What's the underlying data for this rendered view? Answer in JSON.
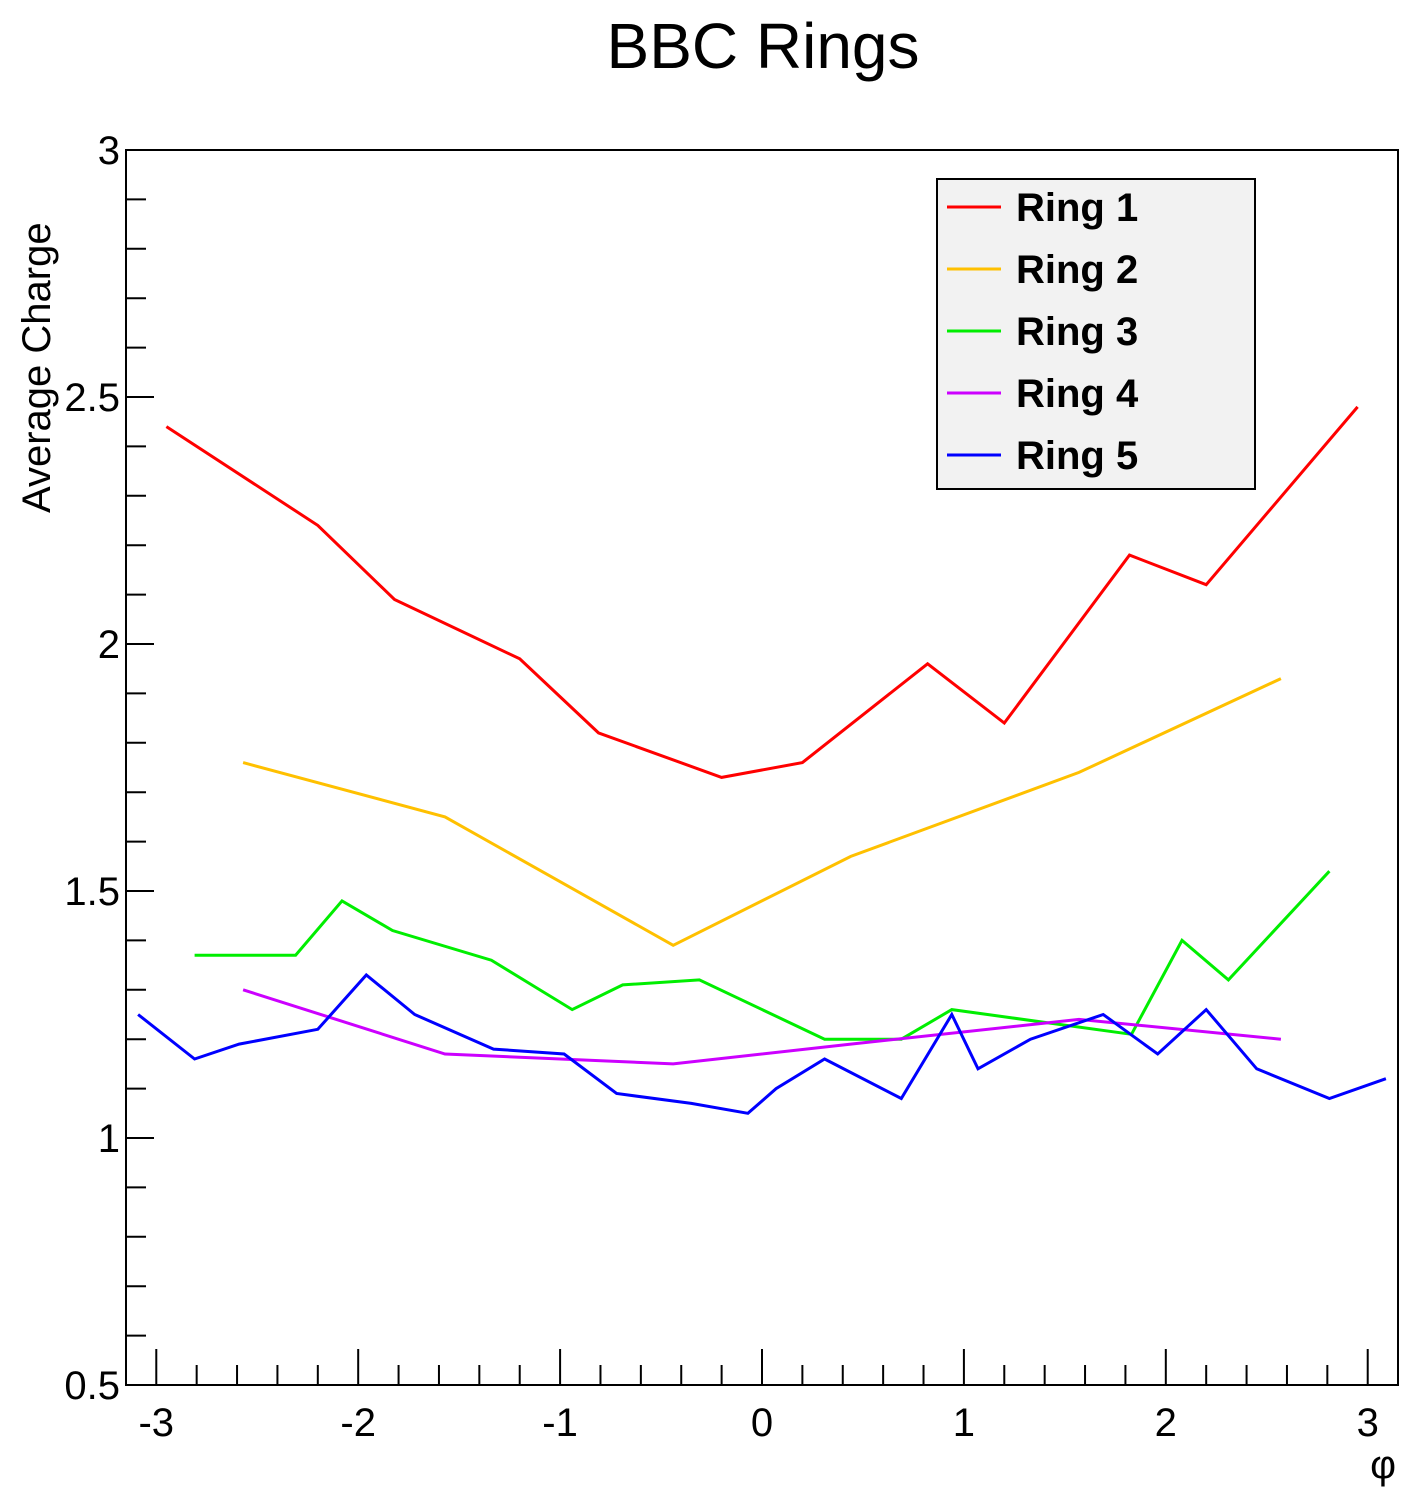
{
  "chart_data": {
    "type": "line",
    "title": "BBC Rings",
    "xlabel": "φ",
    "ylabel": "Average Charge",
    "xlim": [
      -3.15,
      3.15
    ],
    "ylim": [
      0.5,
      3.0
    ],
    "xticks": [
      "-3",
      "-2",
      "-1",
      "0",
      "1",
      "2",
      "3"
    ],
    "yticks": [
      "0.5",
      "1",
      "1.5",
      "2",
      "2.5",
      "3"
    ],
    "grid": false,
    "legend_position": "top-right",
    "series": [
      {
        "name": "Ring 1",
        "color": "#ff0000",
        "x": [
          -2.95,
          -2.2,
          -1.82,
          -1.2,
          -0.81,
          -0.2,
          0.2,
          0.82,
          1.2,
          1.82,
          2.2,
          2.95
        ],
        "y": [
          2.44,
          2.24,
          2.09,
          1.97,
          1.82,
          1.73,
          1.76,
          1.96,
          1.84,
          2.18,
          2.12,
          2.48
        ]
      },
      {
        "name": "Ring 2",
        "color": "#ffc000",
        "x": [
          -2.57,
          -1.57,
          -0.44,
          0.44,
          1.57,
          2.57
        ],
        "y": [
          1.76,
          1.65,
          1.39,
          1.57,
          1.74,
          1.93
        ]
      },
      {
        "name": "Ring 3",
        "color": "#00ee00",
        "x": [
          -2.81,
          -2.31,
          -2.08,
          -1.83,
          -1.34,
          -0.94,
          -0.69,
          -0.31,
          0.31,
          0.69,
          0.94,
          1.83,
          2.08,
          2.31,
          2.81
        ],
        "y": [
          1.37,
          1.37,
          1.48,
          1.42,
          1.36,
          1.26,
          1.31,
          1.32,
          1.2,
          1.2,
          1.26,
          1.21,
          1.4,
          1.32,
          1.54
        ]
      },
      {
        "name": "Ring 4",
        "color": "#cc00ff",
        "x": [
          -2.57,
          -1.57,
          -0.44,
          0.44,
          1.57,
          2.57
        ],
        "y": [
          1.3,
          1.17,
          1.15,
          1.19,
          1.24,
          1.2
        ]
      },
      {
        "name": "Ring 5",
        "color": "#0000ff",
        "x": [
          -3.09,
          -2.81,
          -2.59,
          -2.2,
          -1.96,
          -1.72,
          -1.33,
          -0.98,
          -0.72,
          -0.35,
          -0.07,
          0.07,
          0.31,
          0.69,
          0.94,
          1.07,
          1.33,
          1.69,
          1.96,
          2.2,
          2.45,
          2.81,
          3.09
        ],
        "y": [
          1.25,
          1.16,
          1.19,
          1.22,
          1.33,
          1.25,
          1.18,
          1.17,
          1.09,
          1.07,
          1.05,
          1.1,
          1.16,
          1.08,
          1.25,
          1.14,
          1.2,
          1.25,
          1.17,
          1.26,
          1.14,
          1.08,
          1.12
        ]
      }
    ]
  }
}
